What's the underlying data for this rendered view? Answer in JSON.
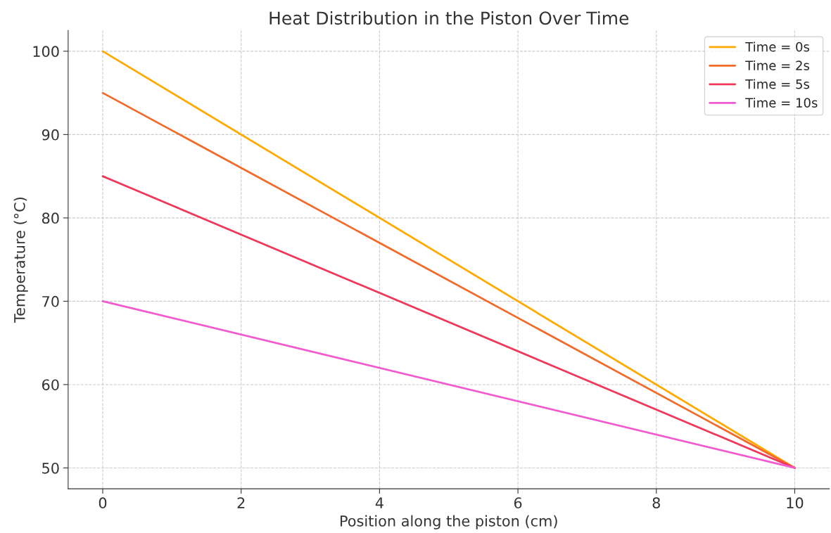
{
  "chart_data": {
    "type": "line",
    "title": "Heat Distribution in the Piston Over Time",
    "xlabel": "Position along the piston (cm)",
    "ylabel": "Temperature (°C)",
    "x": [
      0,
      10
    ],
    "series": [
      {
        "name": "Time = 0s",
        "color": "#ffaa00",
        "values": [
          100,
          50
        ]
      },
      {
        "name": "Time = 2s",
        "color": "#f26b2a",
        "values": [
          95,
          50
        ]
      },
      {
        "name": "Time = 5s",
        "color": "#f0385a",
        "values": [
          85,
          50
        ]
      },
      {
        "name": "Time = 10s",
        "color": "#f25bd0",
        "values": [
          70,
          50
        ]
      }
    ],
    "xlim": [
      -0.5,
      10.5
    ],
    "ylim": [
      47.5,
      102.5
    ],
    "xticks": [
      0,
      2,
      4,
      6,
      8,
      10
    ],
    "yticks": [
      50,
      60,
      70,
      80,
      90,
      100
    ],
    "grid": true,
    "legend": "top right",
    "marker": "none",
    "line_style": "solid"
  }
}
